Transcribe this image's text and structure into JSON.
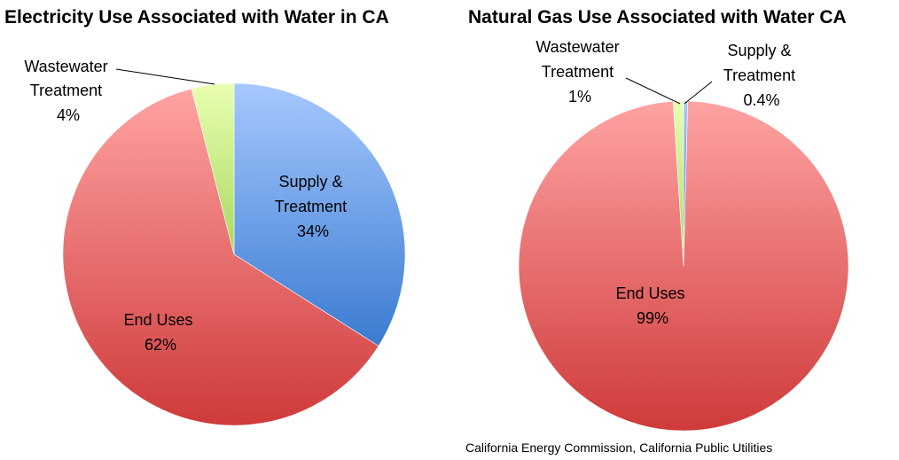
{
  "chart_data": [
    {
      "type": "pie",
      "title": "Electricity Use Associated with Water in CA",
      "slices": [
        {
          "name": "Supply & Treatment",
          "label_lines": [
            "Supply &",
            "Treatment"
          ],
          "value_label": "34%",
          "value": 34,
          "color": "#6e9fe6"
        },
        {
          "name": "End Uses",
          "label_lines": [
            "End Uses"
          ],
          "value_label": "62%",
          "value": 62,
          "color": "#e46a6a"
        },
        {
          "name": "Wastewater Treatment",
          "label_lines": [
            "Wastewater",
            "Treatment"
          ],
          "value_label": "4%",
          "value": 4,
          "color": "#c8ec8a"
        }
      ]
    },
    {
      "type": "pie",
      "title": "Natural Gas Use Associated with Water CA",
      "slices": [
        {
          "name": "Supply & Treatment",
          "label_lines": [
            "Supply &",
            "Treatment"
          ],
          "value_label": "0.4%",
          "value": 0.4,
          "color": "#6e9fe6"
        },
        {
          "name": "End Uses",
          "label_lines": [
            "End Uses"
          ],
          "value_label": "99%",
          "value": 98.6,
          "color": "#e46a6a"
        },
        {
          "name": "Wastewater Treatment",
          "label_lines": [
            "Wastewater",
            "Treatment"
          ],
          "value_label": "1%",
          "value": 1,
          "color": "#c8ec8a"
        }
      ]
    }
  ],
  "source": "California Energy Commission, California Public Utilities"
}
